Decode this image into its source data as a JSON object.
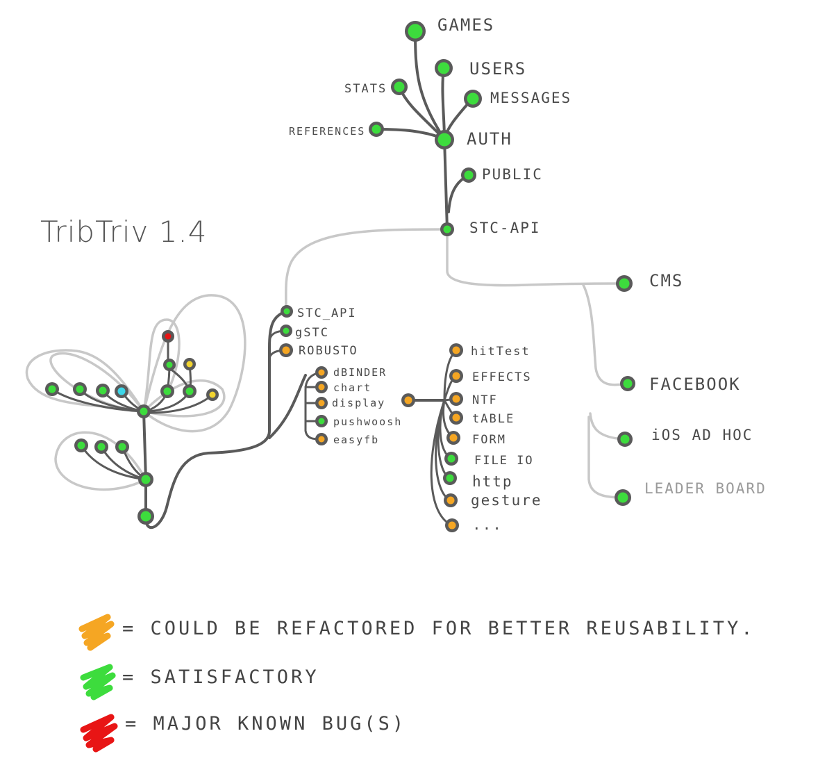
{
  "diagram": {
    "title": "TribTriv 1.4",
    "colors": {
      "refactor": "#f5a623",
      "satisfactory": "#3ddc3d",
      "bug": "#e81515",
      "other": "#3dd6e8",
      "yellow": "#f2d430",
      "wire": "#5a5a5a",
      "wire_light": "#c8c8c8"
    },
    "server_nodes": {
      "games": "GAMES",
      "users": "USERS",
      "stats": "STATS",
      "messages": "MESSAGES",
      "references": "REFERENCES",
      "auth": "AUTH",
      "public": "PUBLIC",
      "stc_api": "STC-API"
    },
    "client_nodes": {
      "cms": "CMS",
      "facebook": "FACEBOOK",
      "ios_adhoc": "iOS AD HOC",
      "leaderboard": "LEADER BOARD"
    },
    "library_nodes": {
      "stc_api": "STC_API",
      "gstc": "gSTC",
      "robusto": "ROBUSTO",
      "dbinder": "dBINDER",
      "chart": "chart",
      "display": "display",
      "pushwoosh": "pushwoosh",
      "easyfb": "easyfb"
    },
    "display_children": [
      "hitTest",
      "EFFECTS",
      "NTF",
      "tABLE",
      "FORM",
      "FILE IO",
      "http",
      "gesture",
      "..."
    ]
  },
  "legend": [
    {
      "color": "#f5a623",
      "text": "= COULD BE REFACTORED FOR BETTER REUSABILITY."
    },
    {
      "color": "#3ddc3d",
      "text": "= SATISFACTORY"
    },
    {
      "color": "#e81515",
      "text": "= MAJOR KNOWN BUG(S)"
    }
  ]
}
